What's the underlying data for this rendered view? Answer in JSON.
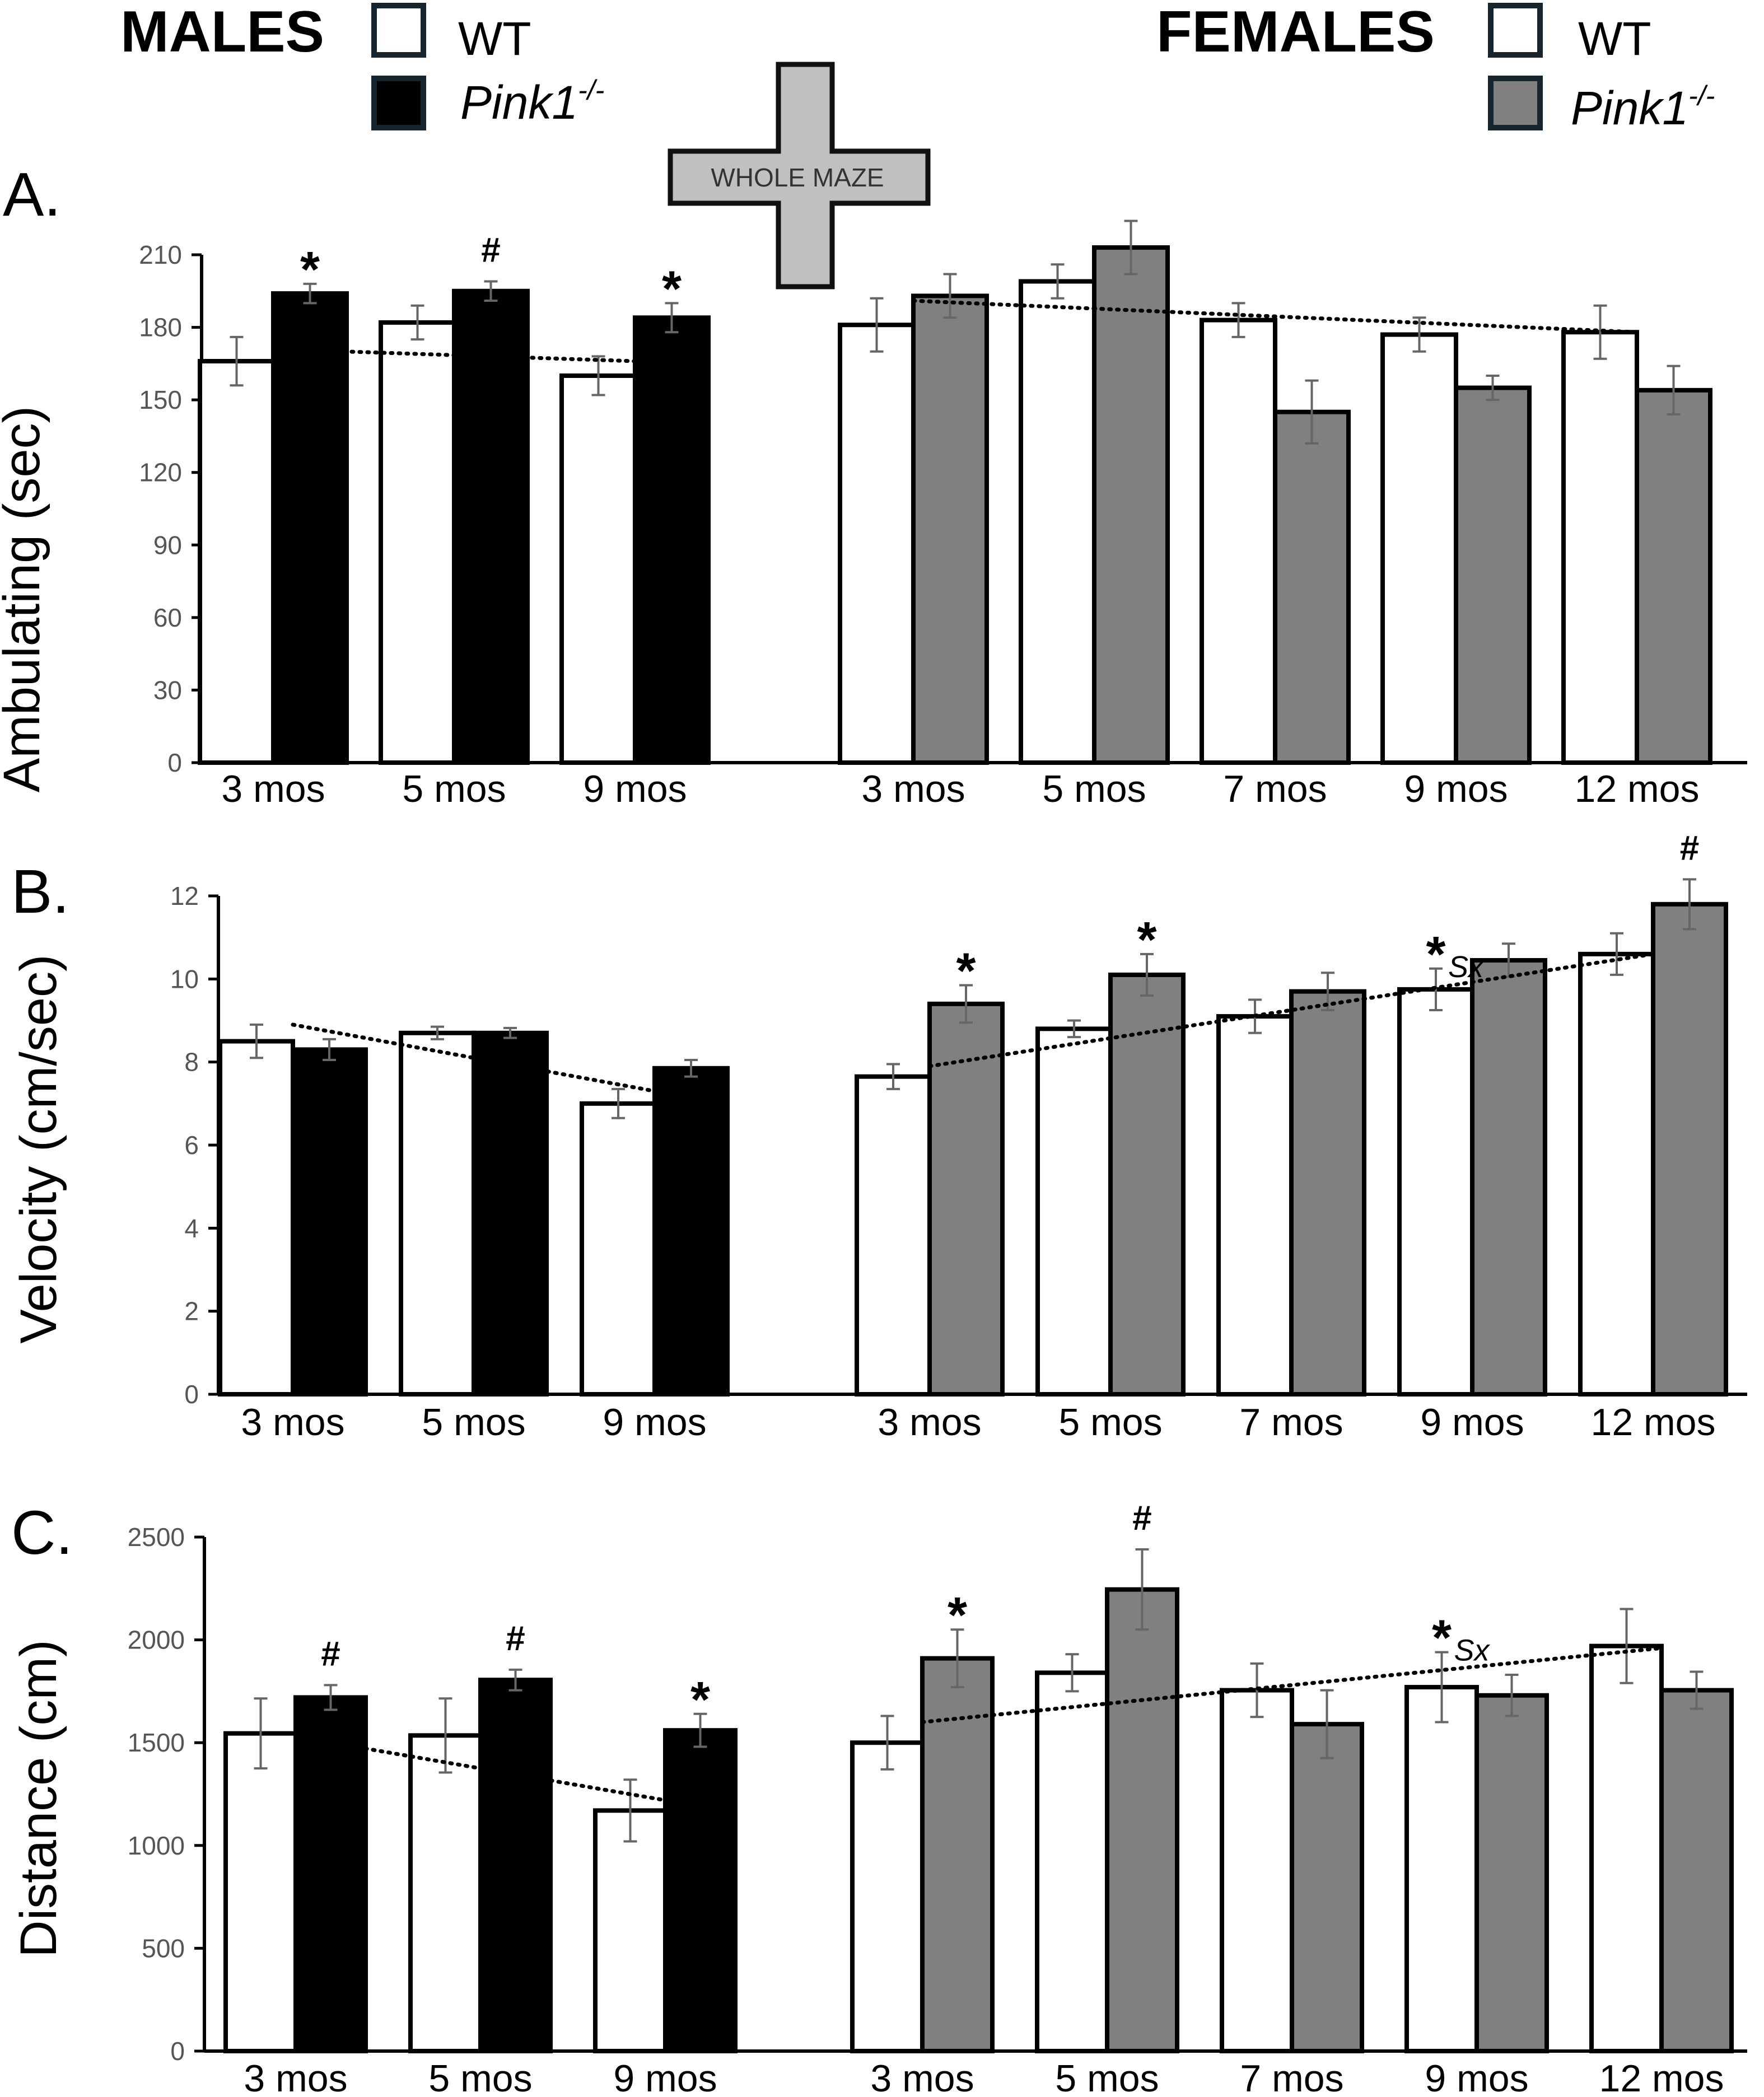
{
  "legend": {
    "males_title": "MALES",
    "females_title": "FEMALES",
    "wt_label": "WT",
    "ko_label": "Pink1",
    "ko_superscript": "-/-"
  },
  "maze_label": "WHOLE MAZE",
  "colors": {
    "wt_fill": "#ffffff",
    "male_ko_fill": "#000000",
    "female_ko_fill": "#808080",
    "maze_fill": "#c0c0c0",
    "error_bar": "#666666",
    "frame": "#000000"
  },
  "chart_data": [
    {
      "type": "bar",
      "panel_label": "A.",
      "ylabel": "Ambulating (sec)",
      "ylim": [
        0,
        210
      ],
      "yticks": [
        0,
        30,
        60,
        90,
        120,
        150,
        180,
        210
      ],
      "groups": [
        {
          "sex": "males",
          "categories": [
            "3 mos",
            "5 mos",
            "9 mos"
          ],
          "series": [
            {
              "name": "WT",
              "values": [
                166,
                182,
                160
              ],
              "errors": [
                10,
                7,
                8
              ]
            },
            {
              "name": "Pink1-/-",
              "values": [
                194,
                195,
                184
              ],
              "errors": [
                4,
                4,
                6
              ]
            }
          ],
          "annotations": [
            {
              "category": "3 mos",
              "series": "Pink1-/-",
              "text": "*"
            },
            {
              "category": "5 mos",
              "series": "Pink1-/-",
              "text": "#"
            },
            {
              "category": "9 mos",
              "series": "Pink1-/-",
              "text": "*"
            }
          ],
          "trend": [
            171,
            166
          ]
        },
        {
          "sex": "females",
          "categories": [
            "3 mos",
            "5 mos",
            "7 mos",
            "9 mos",
            "12 mos"
          ],
          "series": [
            {
              "name": "WT",
              "values": [
                181,
                199,
                183,
                177,
                178
              ],
              "errors": [
                11,
                7,
                7,
                7,
                11
              ]
            },
            {
              "name": "Pink1-/-",
              "values": [
                193,
                213,
                145,
                155,
                154
              ],
              "errors": [
                9,
                11,
                13,
                5,
                10
              ]
            }
          ],
          "annotations": [],
          "trend": [
            191,
            178
          ]
        }
      ]
    },
    {
      "type": "bar",
      "panel_label": "B.",
      "ylabel": "Velocity (cm/sec)",
      "ylim": [
        0,
        12
      ],
      "yticks": [
        0,
        2,
        4,
        6,
        8,
        10,
        12
      ],
      "groups": [
        {
          "sex": "males",
          "categories": [
            "3 mos",
            "5 mos",
            "9 mos"
          ],
          "series": [
            {
              "name": "WT",
              "values": [
                8.5,
                8.7,
                7.0
              ],
              "errors": [
                0.4,
                0.15,
                0.35
              ]
            },
            {
              "name": "Pink1-/-",
              "values": [
                8.3,
                8.7,
                7.85
              ],
              "errors": [
                0.25,
                0.12,
                0.2
              ]
            }
          ],
          "annotations": [],
          "trend": [
            8.9,
            7.3
          ]
        },
        {
          "sex": "females",
          "categories": [
            "3 mos",
            "5 mos",
            "7 mos",
            "9 mos",
            "12 mos"
          ],
          "series": [
            {
              "name": "WT",
              "values": [
                7.65,
                8.8,
                9.1,
                9.75,
                10.6
              ],
              "errors": [
                0.3,
                0.2,
                0.4,
                0.5,
                0.5
              ]
            },
            {
              "name": "Pink1-/-",
              "values": [
                9.4,
                10.1,
                9.7,
                10.45,
                11.8
              ],
              "errors": [
                0.45,
                0.5,
                0.45,
                0.4,
                0.6
              ]
            }
          ],
          "annotations": [
            {
              "category": "3 mos",
              "series": "Pink1-/-",
              "text": "*"
            },
            {
              "category": "5 mos",
              "series": "Pink1-/-",
              "text": "*"
            },
            {
              "category": "9 mos",
              "series": "WT",
              "text": "*",
              "subscript": "Sx"
            },
            {
              "category": "12 mos",
              "series": "Pink1-/-",
              "text": "#"
            }
          ],
          "trend": [
            7.9,
            10.6
          ]
        }
      ]
    },
    {
      "type": "bar",
      "panel_label": "C.",
      "ylabel": "Distance (cm)",
      "ylim": [
        0,
        2500
      ],
      "yticks": [
        0,
        500,
        1000,
        1500,
        2000,
        2500
      ],
      "groups": [
        {
          "sex": "males",
          "categories": [
            "3 mos",
            "5 mos",
            "9 mos"
          ],
          "series": [
            {
              "name": "WT",
              "values": [
                1545,
                1535,
                1170
              ],
              "errors": [
                170,
                180,
                150
              ]
            },
            {
              "name": "Pink1-/-",
              "values": [
                1720,
                1805,
                1560
              ],
              "errors": [
                60,
                50,
                80
              ]
            }
          ],
          "annotations": [
            {
              "category": "3 mos",
              "series": "Pink1-/-",
              "text": "#"
            },
            {
              "category": "5 mos",
              "series": "Pink1-/-",
              "text": "#"
            },
            {
              "category": "9 mos",
              "series": "Pink1-/-",
              "text": "*"
            }
          ],
          "trend": [
            1530,
            1220
          ]
        },
        {
          "sex": "females",
          "categories": [
            "3 mos",
            "5 mos",
            "7 mos",
            "9 mos",
            "12 mos"
          ],
          "series": [
            {
              "name": "WT",
              "values": [
                1500,
                1840,
                1755,
                1770,
                1970
              ],
              "errors": [
                130,
                90,
                130,
                170,
                180
              ]
            },
            {
              "name": "Pink1-/-",
              "values": [
                1910,
                2245,
                1590,
                1730,
                1755
              ],
              "errors": [
                140,
                195,
                165,
                100,
                90
              ]
            }
          ],
          "annotations": [
            {
              "category": "3 mos",
              "series": "Pink1-/-",
              "text": "*"
            },
            {
              "category": "5 mos",
              "series": "Pink1-/-",
              "text": "#"
            },
            {
              "category": "9 mos",
              "series": "WT",
              "text": "*",
              "subscript": "Sx"
            }
          ],
          "trend": [
            1600,
            1960
          ]
        }
      ]
    }
  ]
}
